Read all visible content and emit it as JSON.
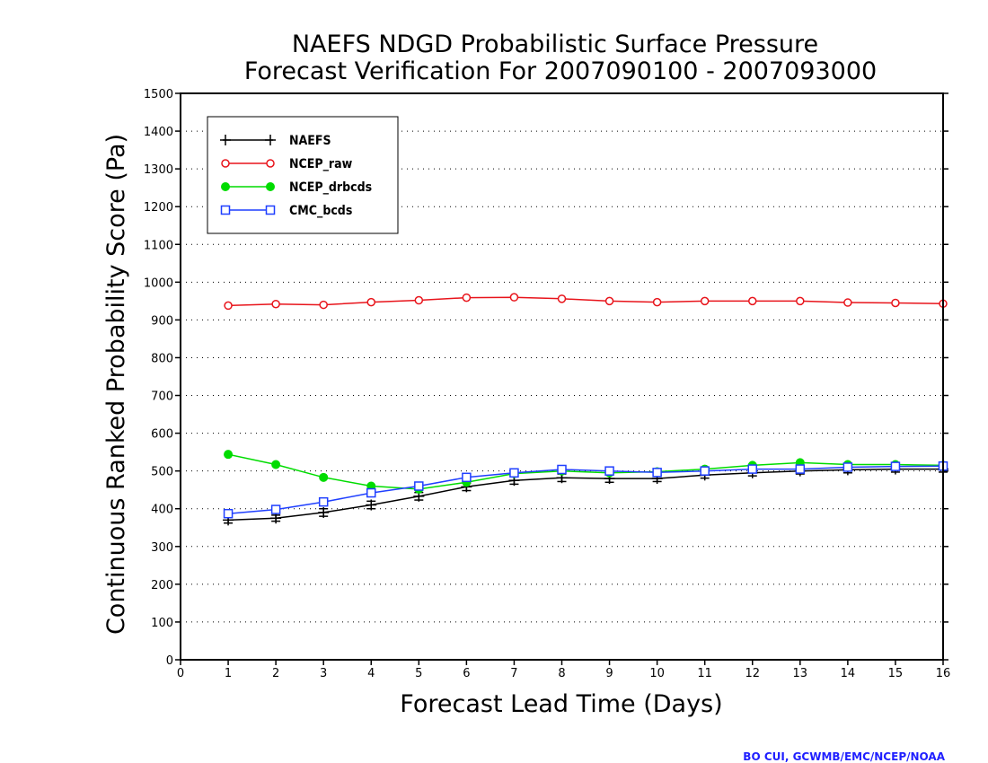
{
  "chart_data": {
    "type": "line",
    "title_line1": "NAEFS NDGD Probabilistic Surface Pressure",
    "title_line2": "Forecast Verification For 2007090100 - 2007093000",
    "xlabel": "Forecast Lead Time (Days)",
    "ylabel": "Continuous Ranked Probability Score (Pa)",
    "xlim": [
      0,
      16
    ],
    "ylim": [
      0,
      1500
    ],
    "xticks": [
      0,
      1,
      2,
      3,
      4,
      5,
      6,
      7,
      8,
      9,
      10,
      11,
      12,
      13,
      14,
      15,
      16
    ],
    "yticks": [
      0,
      100,
      200,
      300,
      400,
      500,
      600,
      700,
      800,
      900,
      1000,
      1100,
      1200,
      1300,
      1400,
      1500
    ],
    "grid": "horizontal dotted",
    "legend_position": "top-left",
    "x": [
      1,
      2,
      3,
      4,
      5,
      6,
      7,
      8,
      9,
      10,
      11,
      12,
      13,
      14,
      15,
      16
    ],
    "series": [
      {
        "name": "NAEFS",
        "color": "#000000",
        "marker": "plus-errorbar",
        "values": [
          370,
          375,
          390,
          410,
          433,
          458,
          475,
          482,
          480,
          480,
          489,
          495,
          500,
          503,
          505,
          505
        ],
        "error": [
          8,
          8,
          10,
          10,
          10,
          10,
          10,
          10,
          10,
          8,
          8,
          8,
          8,
          8,
          8,
          8
        ]
      },
      {
        "name": "NCEP_raw",
        "color": "#e8141b",
        "marker": "open-circle",
        "values": [
          938,
          942,
          940,
          947,
          952,
          959,
          960,
          956,
          950,
          947,
          950,
          950,
          950,
          946,
          945,
          943
        ]
      },
      {
        "name": "NCEP_drbcds",
        "color": "#00dc00",
        "marker": "filled-circle",
        "values": [
          544,
          517,
          483,
          460,
          452,
          470,
          493,
          500,
          495,
          498,
          505,
          515,
          522,
          517,
          517,
          515
        ]
      },
      {
        "name": "CMC_bcds",
        "color": "#1f3fff",
        "marker": "open-square",
        "values": [
          387,
          398,
          418,
          442,
          460,
          483,
          495,
          504,
          500,
          496,
          500,
          505,
          505,
          510,
          512,
          513
        ]
      }
    ],
    "credit": "BO CUI, GCWMB/EMC/NCEP/NOAA"
  }
}
